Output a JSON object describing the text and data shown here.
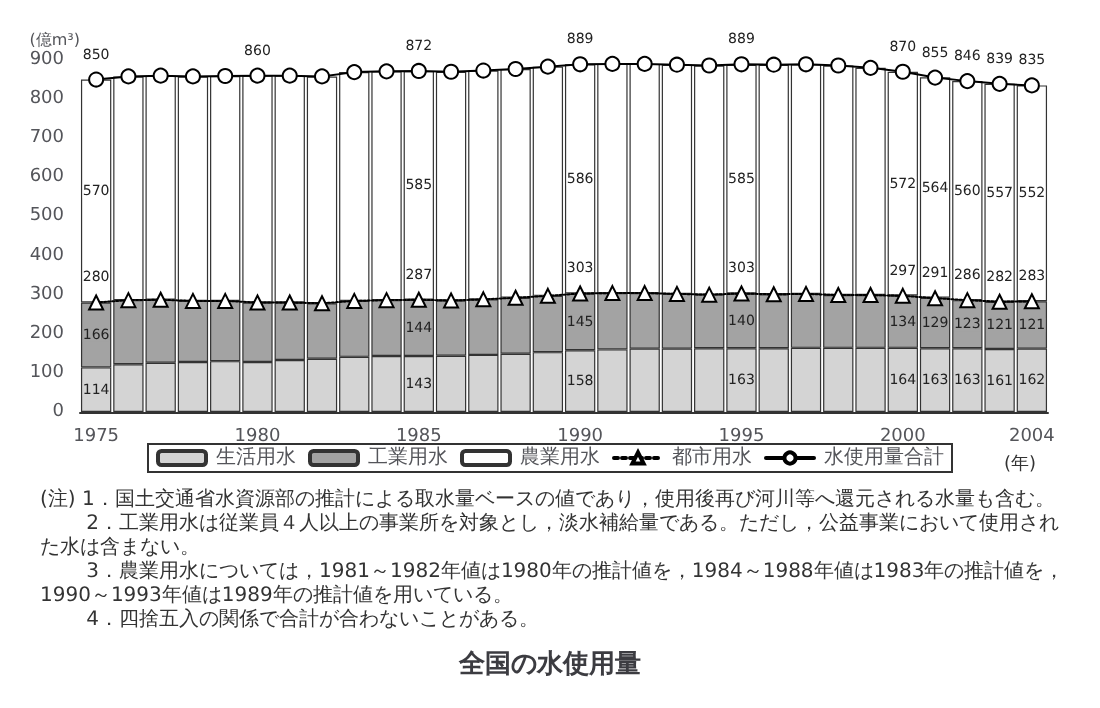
{
  "chart_data": {
    "type": "bar",
    "title": "全国の水使用量",
    "ylabel": "(億m³)",
    "xlabel": "(年)",
    "categories": [
      "1975",
      null,
      null,
      null,
      null,
      "1980",
      null,
      null,
      null,
      null,
      "1985",
      null,
      null,
      null,
      null,
      "1990",
      null,
      null,
      null,
      null,
      "1995",
      null,
      null,
      null,
      null,
      "2000",
      null,
      null,
      null,
      "2004"
    ],
    "stacked": true,
    "ylim": [
      0,
      900
    ],
    "yticks": [
      0,
      100,
      200,
      300,
      400,
      500,
      600,
      700,
      800,
      900
    ],
    "grid": false,
    "legend": "bottom",
    "series": [
      {
        "name": "生活用水",
        "color": "#d4d4d4",
        "values": [
          114,
          122,
          126,
          128,
          130,
          128,
          133,
          136,
          141,
          143,
          143,
          144,
          146,
          149,
          153,
          158,
          160,
          162,
          162,
          163,
          163,
          163,
          164,
          164,
          164,
          164,
          163,
          163,
          161,
          162
        ],
        "value_labels": [
          "114",
          null,
          null,
          null,
          null,
          null,
          null,
          null,
          null,
          null,
          "143",
          null,
          null,
          null,
          null,
          "158",
          null,
          null,
          null,
          null,
          "163",
          null,
          null,
          null,
          null,
          "164",
          "163",
          "163",
          "161",
          "162"
        ]
      },
      {
        "name": "工業用水",
        "color": "#a3a3a3",
        "values": [
          166,
          164,
          161,
          156,
          154,
          152,
          147,
          142,
          143,
          143,
          144,
          141,
          142,
          143,
          144,
          145,
          144,
          142,
          140,
          137,
          140,
          138,
          138,
          135,
          135,
          134,
          129,
          123,
          121,
          121
        ],
        "value_labels": [
          "166",
          null,
          null,
          null,
          null,
          null,
          null,
          null,
          null,
          null,
          "144",
          null,
          null,
          null,
          null,
          "145",
          null,
          null,
          null,
          null,
          "140",
          null,
          null,
          null,
          null,
          "134",
          "129",
          "123",
          "121",
          "121"
        ]
      },
      {
        "name": "農業用水",
        "color": "#ffffff",
        "values": [
          570,
          572,
          573,
          574,
          575,
          580,
          580,
          580,
          585,
          585,
          585,
          585,
          585,
          585,
          586,
          586,
          586,
          586,
          586,
          586,
          585,
          587,
          587,
          587,
          581,
          572,
          564,
          560,
          557,
          552
        ],
        "value_labels": [
          "570",
          null,
          null,
          null,
          null,
          null,
          null,
          null,
          null,
          null,
          "585",
          null,
          null,
          null,
          null,
          "586",
          null,
          null,
          null,
          null,
          "585",
          null,
          null,
          null,
          null,
          "572",
          "564",
          "560",
          "557",
          "552"
        ]
      },
      {
        "name": "都市用水",
        "type": "line",
        "color": "#000000",
        "marker": "triangle",
        "line_style": "dotted",
        "values": [
          280,
          286,
          287,
          284,
          284,
          280,
          280,
          278,
          284,
          286,
          287,
          285,
          288,
          292,
          297,
          303,
          304,
          304,
          302,
          300,
          303,
          301,
          302,
          299,
          299,
          297,
          291,
          286,
          282,
          283
        ],
        "value_labels": [
          "280",
          null,
          null,
          null,
          null,
          null,
          null,
          null,
          null,
          null,
          "287",
          null,
          null,
          null,
          null,
          "303",
          null,
          null,
          null,
          null,
          "303",
          null,
          null,
          null,
          null,
          "297",
          "291",
          "286",
          "282",
          "283"
        ]
      },
      {
        "name": "水使用量合計",
        "type": "line",
        "color": "#000000",
        "marker": "circle",
        "line_style": "solid",
        "values": [
          850,
          858,
          860,
          858,
          859,
          860,
          860,
          858,
          869,
          871,
          872,
          870,
          873,
          877,
          883,
          889,
          890,
          890,
          888,
          886,
          889,
          888,
          889,
          886,
          880,
          870,
          855,
          846,
          839,
          835
        ],
        "value_labels": [
          "850",
          null,
          null,
          null,
          null,
          "860",
          null,
          null,
          null,
          null,
          "872",
          null,
          null,
          null,
          null,
          "889",
          null,
          null,
          null,
          null,
          "889",
          null,
          null,
          null,
          null,
          "870",
          "855",
          "846",
          "839",
          "835"
        ]
      }
    ],
    "annotations": [
      "(注) 1．国土交通省水資源部の推計による取水量ベースの値であり，使用後再び河川等へ還元される水量も含む。",
      "　　 2．工業用水は従業員４人以上の事業所を対象とし，淡水補給量である。ただし，公益事業において使用された水は含まない。",
      "　　 3．農業用水については，1981～1982年値は1980年の推計値を，1984～1988年値は1983年の推計値を，1990～1993年値は1989年の推計値を用いている。",
      "　　 4．四捨五入の関係で合計が合わないことがある。"
    ]
  }
}
